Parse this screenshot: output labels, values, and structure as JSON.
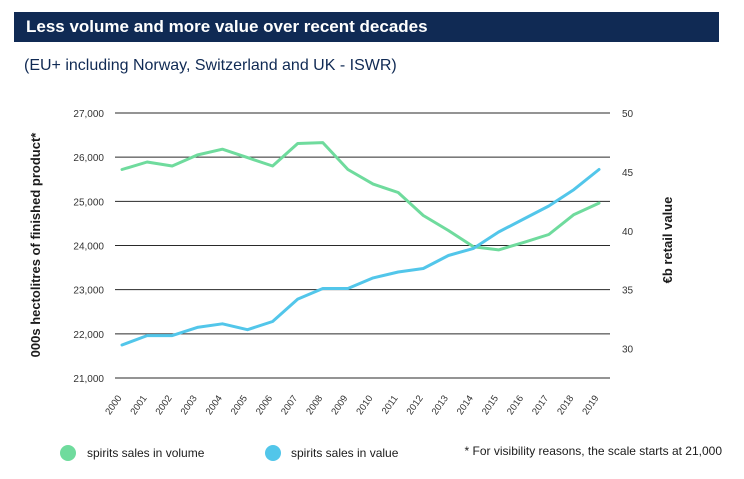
{
  "header": {
    "title": "Less volume and more value over recent decades",
    "subtitle": "(EU+ including Norway, Switzerland and UK - ISWR)"
  },
  "footnote": "* For visibility reasons, the scale starts at 21,000",
  "colors": {
    "title_bar": "#102a54",
    "volume": "#6fdb9d",
    "value": "#52c6ea"
  },
  "chart_data": {
    "type": "line",
    "categories": [
      "2000",
      "2001",
      "2002",
      "2003",
      "2004",
      "2005",
      "2006",
      "2007",
      "2008",
      "2009",
      "2010",
      "2011",
      "2012",
      "2013",
      "2014",
      "2015",
      "2016",
      "2017",
      "2018",
      "2019"
    ],
    "ylabel": "000s hectolitres of finished product*",
    "y2label": "€b retail value",
    "ylim": [
      21000,
      27000
    ],
    "y2lim": [
      27.5,
      50
    ],
    "yticks": [
      21000,
      22000,
      23000,
      24000,
      25000,
      26000,
      27000
    ],
    "yticks_labels": [
      "21,000",
      "22,000",
      "23,000",
      "24,000",
      "25,000",
      "26,000",
      "27,000"
    ],
    "y2ticks": [
      30,
      35,
      40,
      45,
      50
    ],
    "y2ticks_labels": [
      "30",
      "35",
      "40",
      "45",
      "50"
    ],
    "grid": "horizontal",
    "legend_position": "bottom",
    "series": [
      {
        "name": "spirits sales in volume",
        "axis": "left",
        "color": "#6fdb9d",
        "values": [
          25720,
          25890,
          25800,
          26050,
          26180,
          25990,
          25800,
          26310,
          26330,
          25720,
          25390,
          25200,
          24680,
          24340,
          23970,
          23900,
          24070,
          24250,
          24700,
          24960
        ]
      },
      {
        "name": "spirits sales in value",
        "axis": "right",
        "color": "#52c6ea",
        "values": [
          30.3,
          31.1,
          31.1,
          31.8,
          32.1,
          31.6,
          32.3,
          34.2,
          35.1,
          35.1,
          36.0,
          36.5,
          36.8,
          37.9,
          38.5,
          39.9,
          41.0,
          42.1,
          43.5,
          45.2
        ]
      }
    ]
  }
}
